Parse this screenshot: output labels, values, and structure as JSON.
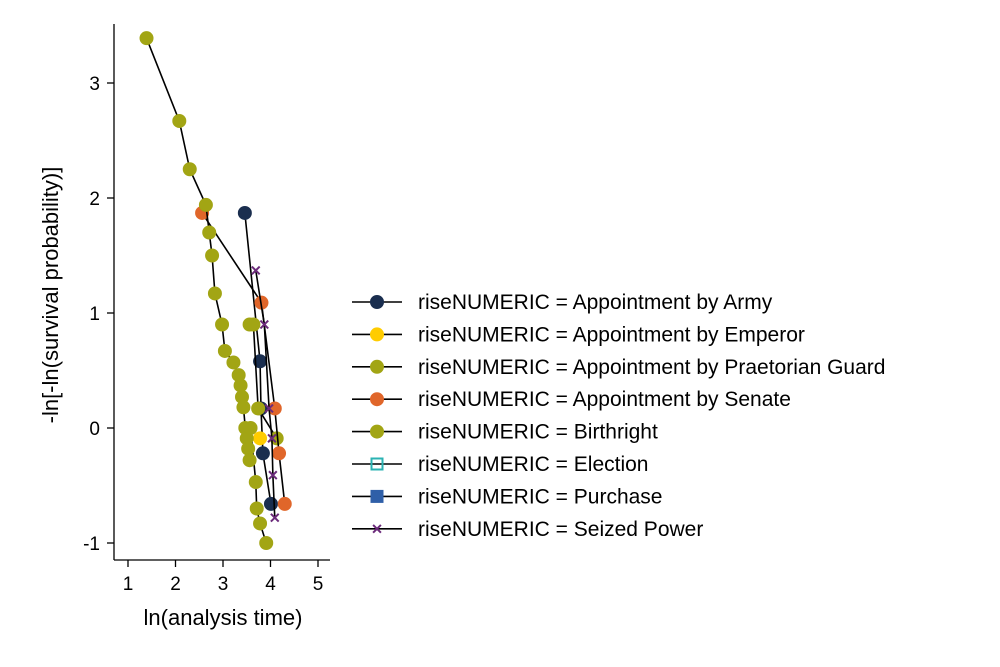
{
  "chart_data": {
    "type": "line",
    "title": "",
    "xlabel": "ln(analysis time)",
    "ylabel": "-ln[-ln(survival probability)]",
    "xlim": [
      0.75,
      5.3
    ],
    "ylim": [
      -1.12,
      3.5
    ],
    "x_ticks": [
      1,
      2,
      3,
      4,
      5
    ],
    "y_ticks": [
      -1,
      0,
      1,
      2,
      3
    ],
    "grid": false,
    "legend_position": "right",
    "series": [
      {
        "name": "riseNUMERIC = Appointment by Army",
        "color": "#1a2e4f",
        "marker": "circle",
        "x": [
          3.46,
          3.78,
          3.8,
          3.84,
          4.01
        ],
        "y": [
          1.87,
          0.58,
          0.17,
          -0.22,
          -0.66
        ]
      },
      {
        "name": "riseNUMERIC = Appointment by Emperor",
        "color": "#ffcc00",
        "marker": "circle",
        "x": [
          3.78
        ],
        "y": [
          -0.09
        ]
      },
      {
        "name": "riseNUMERIC = Appointment by Praetorian Guard",
        "color": "#a2a514",
        "marker": "circle",
        "x": [
          3.56,
          3.64,
          3.74,
          4.13
        ],
        "y": [
          0.9,
          0.9,
          0.17,
          -0.09
        ]
      },
      {
        "name": "riseNUMERIC = Appointment by Senate",
        "color": "#e0662a",
        "marker": "circle",
        "x": [
          2.56,
          3.81,
          4.09,
          4.18,
          4.3
        ],
        "y": [
          1.87,
          1.09,
          0.17,
          -0.22,
          -0.66
        ]
      },
      {
        "name": "riseNUMERIC = Birthright",
        "color": "#a2a514",
        "marker": "circle",
        "x": [
          1.39,
          2.08,
          2.3,
          2.64,
          2.71,
          2.77,
          2.83,
          2.98,
          3.04,
          3.22,
          3.33,
          3.37,
          3.4,
          3.43,
          3.47,
          3.5,
          3.53,
          3.56,
          3.58,
          3.69,
          3.71,
          3.78,
          3.91
        ],
        "y": [
          3.39,
          2.67,
          2.25,
          1.94,
          1.7,
          1.5,
          1.17,
          0.9,
          0.67,
          0.57,
          0.46,
          0.37,
          0.27,
          0.18,
          0.0,
          -0.09,
          -0.18,
          -0.28,
          0.0,
          -0.47,
          -0.7,
          -0.83,
          -1.0
        ]
      },
      {
        "name": "riseNUMERIC = Election",
        "color": "#2bb3b3",
        "marker": "hollow-square",
        "x": [],
        "y": []
      },
      {
        "name": "riseNUMERIC = Purchase",
        "color": "#2f5fa8",
        "marker": "square",
        "x": [],
        "y": []
      },
      {
        "name": "riseNUMERIC = Seized Power",
        "color": "#6b2a7a",
        "marker": "x",
        "x": [
          3.69,
          3.87,
          3.97,
          4.03,
          4.05,
          4.09
        ],
        "y": [
          1.37,
          0.9,
          0.17,
          -0.09,
          -0.41,
          -0.78
        ]
      }
    ]
  }
}
